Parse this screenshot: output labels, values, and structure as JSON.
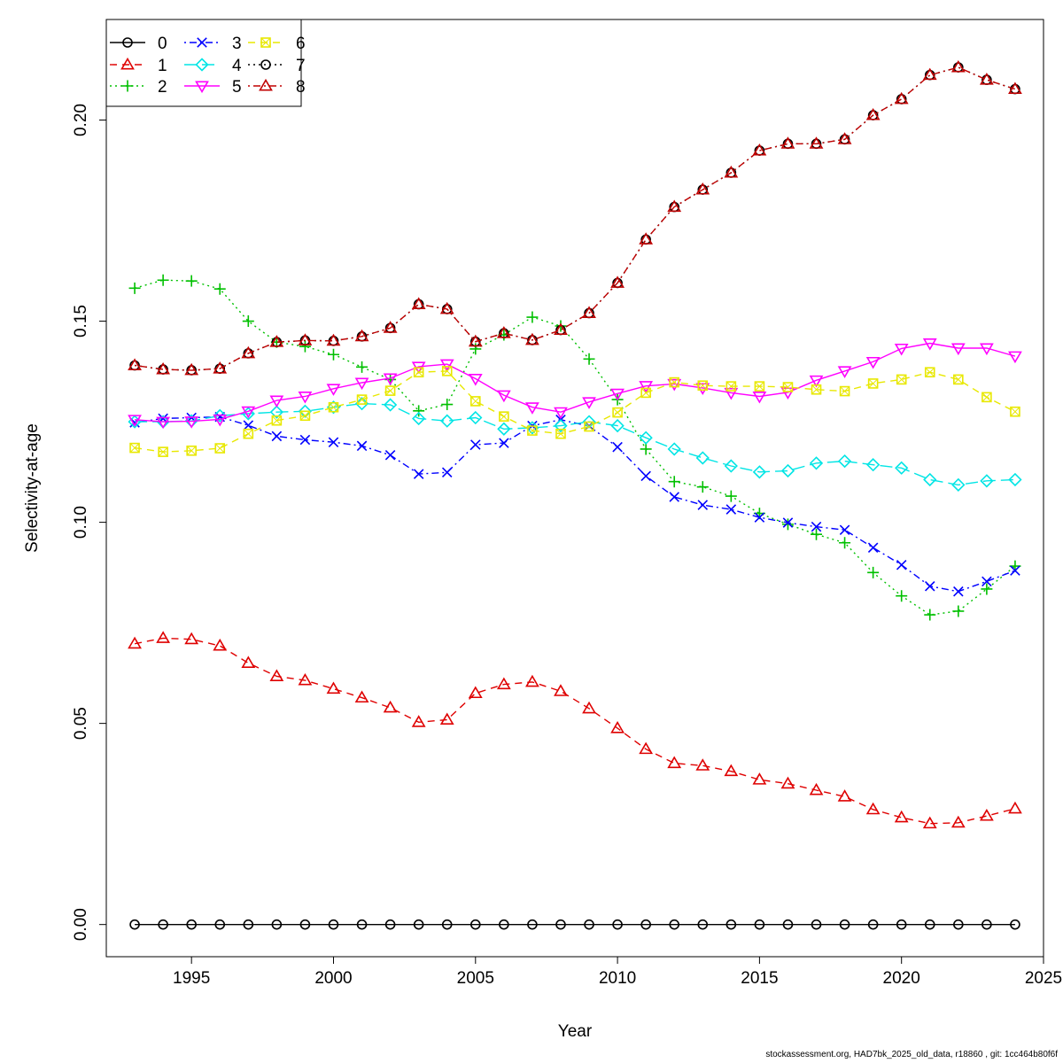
{
  "chart_data": {
    "type": "line",
    "title": "",
    "xlabel": "Year",
    "ylabel": "Selectivity-at-age",
    "xlim": [
      1992,
      2025
    ],
    "ylim": [
      -0.008,
      0.225
    ],
    "xticks": [
      1995,
      2000,
      2005,
      2010,
      2015,
      2020,
      2025
    ],
    "xtick_labels": [
      "1995",
      "2000",
      "2005",
      "2010",
      "2015",
      "2020",
      "2025"
    ],
    "yticks": [
      0.0,
      0.05,
      0.1,
      0.15,
      0.2
    ],
    "ytick_labels": [
      "0.00",
      "0.05",
      "0.10",
      "0.15",
      "0.20"
    ],
    "grid": false,
    "legend_position": "top-left",
    "x": [
      1993,
      1994,
      1995,
      1996,
      1997,
      1998,
      1999,
      2000,
      2001,
      2002,
      2003,
      2004,
      2005,
      2006,
      2007,
      2008,
      2009,
      2010,
      2011,
      2012,
      2013,
      2014,
      2015,
      2016,
      2017,
      2018,
      2019,
      2020,
      2021,
      2022,
      2023,
      2024
    ],
    "series": [
      {
        "name": "0",
        "color": "#000000",
        "marker": "circle",
        "dash": "solid",
        "values": [
          0,
          0,
          0,
          0,
          0,
          0,
          0,
          0,
          0,
          0,
          0,
          0,
          0,
          0,
          0,
          0,
          0,
          0,
          0,
          0,
          0,
          0,
          0,
          0,
          0,
          0,
          0,
          0,
          0,
          0,
          0,
          0
        ]
      },
      {
        "name": "1",
        "color": "#DF0000",
        "marker": "triangle-up",
        "dash": "dashed",
        "values": [
          0.0698,
          0.0712,
          0.0709,
          0.0693,
          0.065,
          0.0617,
          0.0607,
          0.0586,
          0.0564,
          0.0539,
          0.0503,
          0.0509,
          0.0575,
          0.0597,
          0.0603,
          0.058,
          0.0537,
          0.0488,
          0.0436,
          0.0401,
          0.0395,
          0.0381,
          0.036,
          0.035,
          0.0334,
          0.0318,
          0.0286,
          0.0266,
          0.0251,
          0.0253,
          0.027,
          0.0288
        ]
      },
      {
        "name": "2",
        "color": "#00C000",
        "marker": "plus",
        "dash": "dotted",
        "values": [
          0.1582,
          0.1602,
          0.16,
          0.158,
          0.15,
          0.1448,
          0.1437,
          0.1417,
          0.1386,
          0.1355,
          0.1277,
          0.1293,
          0.1431,
          0.1466,
          0.151,
          0.1488,
          0.1406,
          0.1305,
          0.1182,
          0.1101,
          0.1088,
          0.1065,
          0.1022,
          0.0995,
          0.097,
          0.0949,
          0.0875,
          0.0817,
          0.077,
          0.0779,
          0.0834,
          0.0891
        ]
      },
      {
        "name": "3",
        "color": "#0000FF",
        "marker": "x",
        "dash": "dotdash",
        "values": [
          0.1248,
          0.1258,
          0.126,
          0.1262,
          0.1241,
          0.1214,
          0.1205,
          0.1199,
          0.119,
          0.1167,
          0.112,
          0.1124,
          0.1193,
          0.1197,
          0.124,
          0.1255,
          0.1239,
          0.1187,
          0.1115,
          0.1063,
          0.1043,
          0.1032,
          0.1012,
          0.0999,
          0.0989,
          0.0981,
          0.0937,
          0.0894,
          0.0841,
          0.0828,
          0.0853,
          0.088
        ]
      },
      {
        "name": "4",
        "color": "#00E5E5",
        "marker": "diamond",
        "dash": "longdash",
        "values": [
          0.125,
          0.125,
          0.1252,
          0.1265,
          0.127,
          0.1274,
          0.1276,
          0.1286,
          0.1295,
          0.1292,
          0.1258,
          0.1252,
          0.126,
          0.1232,
          0.1235,
          0.124,
          0.125,
          0.124,
          0.121,
          0.1182,
          0.116,
          0.114,
          0.1125,
          0.1128,
          0.1147,
          0.1152,
          0.1143,
          0.1135,
          0.1106,
          0.1093,
          0.1103,
          0.1106
        ]
      },
      {
        "name": "5",
        "color": "#FF00FF",
        "marker": "triangle-down",
        "dash": "solid",
        "values": [
          0.1255,
          0.125,
          0.1251,
          0.1256,
          0.1276,
          0.1303,
          0.1313,
          0.1332,
          0.1347,
          0.1358,
          0.1387,
          0.1393,
          0.1357,
          0.1316,
          0.1286,
          0.1274,
          0.1299,
          0.132,
          0.1339,
          0.1344,
          0.1334,
          0.1322,
          0.1313,
          0.1323,
          0.1353,
          0.1376,
          0.1399,
          0.1432,
          0.1445,
          0.1433,
          0.1433,
          0.1413
        ]
      },
      {
        "name": "6",
        "color": "#E8E800",
        "marker": "square-x",
        "dash": "dashed",
        "values": [
          0.1185,
          0.1175,
          0.1178,
          0.1184,
          0.122,
          0.1253,
          0.1265,
          0.1286,
          0.1305,
          0.1327,
          0.1373,
          0.1376,
          0.1301,
          0.1263,
          0.1228,
          0.122,
          0.1238,
          0.1273,
          0.1322,
          0.1348,
          0.134,
          0.1338,
          0.1338,
          0.1336,
          0.133,
          0.1326,
          0.1345,
          0.1355,
          0.1373,
          0.1355,
          0.1311,
          0.1275
        ]
      },
      {
        "name": "7",
        "color": "#000000",
        "marker": "circle",
        "dash": "dotted",
        "values": [
          0.139,
          0.138,
          0.1378,
          0.1382,
          0.142,
          0.1448,
          0.1452,
          0.1451,
          0.1462,
          0.1483,
          0.1542,
          0.153,
          0.1449,
          0.147,
          0.1453,
          0.1478,
          0.152,
          0.1595,
          0.1703,
          0.1784,
          0.1827,
          0.1869,
          0.1924,
          0.1941,
          0.1941,
          0.1952,
          0.2012,
          0.2052,
          0.2112,
          0.2131,
          0.21,
          0.2077
        ]
      },
      {
        "name": "8",
        "color": "#C00000",
        "marker": "triangle-up",
        "dash": "dotdash",
        "values": [
          0.139,
          0.138,
          0.1378,
          0.1382,
          0.142,
          0.1448,
          0.1452,
          0.1451,
          0.1462,
          0.1483,
          0.1542,
          0.153,
          0.1449,
          0.147,
          0.1453,
          0.1478,
          0.152,
          0.1595,
          0.1703,
          0.1784,
          0.1827,
          0.1869,
          0.1924,
          0.1941,
          0.1941,
          0.1952,
          0.2012,
          0.2052,
          0.2112,
          0.2131,
          0.21,
          0.2077
        ]
      }
    ],
    "footer": "stockassessment.org, HAD7bk_2025_old_data, r18860 , git: 1cc464b80f6f"
  }
}
